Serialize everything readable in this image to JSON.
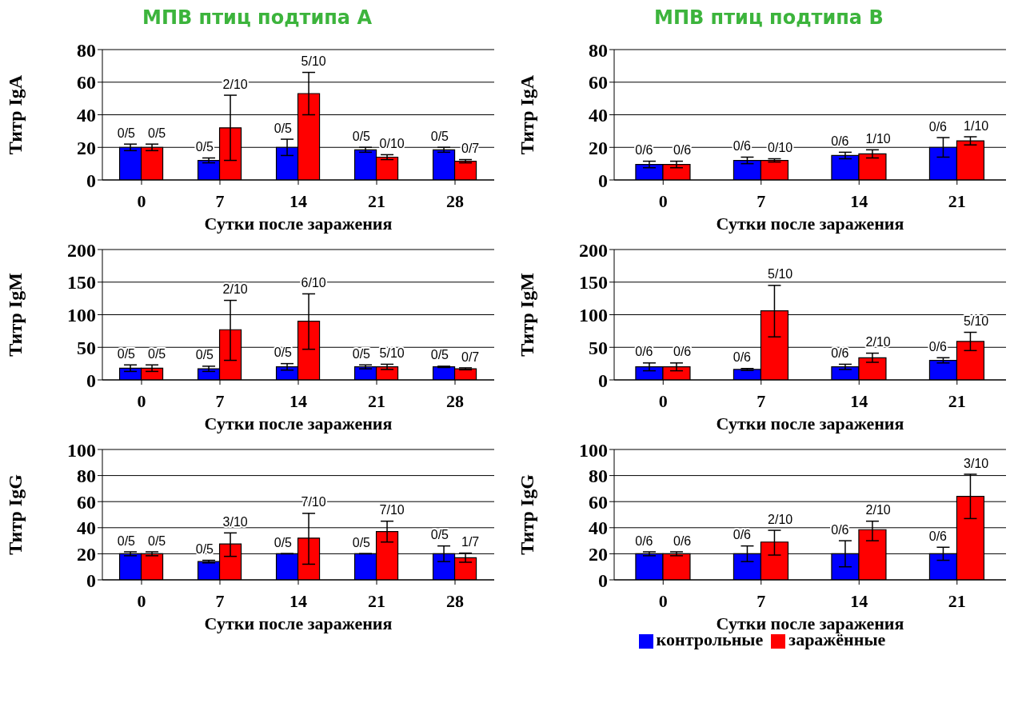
{
  "chart_data": [
    {
      "type": "bar",
      "title": "МПВ птиц подтипа А",
      "xlabel": "Сутки после заражения",
      "ylabel": "Титр IgA",
      "categories": [
        "0",
        "7",
        "14",
        "21",
        "28"
      ],
      "ylim": [
        0,
        80
      ],
      "yticks": [
        0,
        20,
        40,
        60,
        80
      ],
      "grid": "y",
      "series": [
        {
          "color": "#0000ff",
          "values": [
            20,
            12,
            20,
            18.5,
            18.5
          ],
          "errors": [
            2,
            1.5,
            5,
            1.5,
            1.5
          ]
        },
        {
          "color": "#ff0000",
          "values": [
            20,
            32,
            53,
            14,
            11.5
          ],
          "errors": [
            2,
            [
              12,
              52
            ],
            [
              40,
              66
            ],
            1.5,
            1
          ]
        }
      ],
      "annotations": [
        {
          "text": "0/5",
          "x": "0",
          "y": 20
        },
        {
          "text": "0/5",
          "x": "0",
          "y": 20
        },
        {
          "text": "0/5",
          "x": "7",
          "y": 12
        },
        {
          "text": "2/10",
          "x": "7",
          "y": 32
        },
        {
          "text": "0/5",
          "x": "14",
          "y": 20
        },
        {
          "text": "5/10",
          "x": "14",
          "y": 53
        },
        {
          "text": "0/5",
          "x": "21",
          "y": 18.5
        },
        {
          "text": "0/10",
          "x": "21",
          "y": 14
        },
        {
          "text": "0/5",
          "x": "28",
          "y": 18.5
        },
        {
          "text": "0/7",
          "x": "28",
          "y": 11.5
        }
      ]
    },
    {
      "type": "bar",
      "title": "МПВ птиц подтипа В",
      "xlabel": "Сутки после заражения",
      "ylabel": "Титр IgA",
      "categories": [
        "0",
        "7",
        "14",
        "21"
      ],
      "ylim": [
        0,
        80
      ],
      "yticks": [
        0,
        20,
        40,
        60,
        80
      ],
      "grid": "y",
      "series": [
        {
          "color": "#0000ff",
          "values": [
            9.5,
            12,
            15,
            20
          ],
          "errors": [
            2,
            2,
            2,
            [
              14,
              26
            ]
          ]
        },
        {
          "color": "#ff0000",
          "values": [
            9.5,
            12,
            16,
            24
          ],
          "errors": [
            2,
            1,
            2.5,
            2.5
          ]
        }
      ],
      "annotations": [
        {
          "text": "0/6",
          "x": "0",
          "y": 9.5
        },
        {
          "text": "0/6",
          "x": "0",
          "y": 9.5
        },
        {
          "text": "0/6",
          "x": "7",
          "y": 12
        },
        {
          "text": "0/10",
          "x": "7",
          "y": 12
        },
        {
          "text": "0/6",
          "x": "14",
          "y": 15
        },
        {
          "text": "1/10",
          "x": "14",
          "y": 16
        },
        {
          "text": "0/6",
          "x": "21",
          "y": 20
        },
        {
          "text": "1/10",
          "x": "21",
          "y": 24
        }
      ]
    },
    {
      "type": "bar",
      "xlabel": "Сутки после заражения",
      "ylabel": "Титр IgM",
      "categories": [
        "0",
        "7",
        "14",
        "21",
        "28"
      ],
      "ylim": [
        0,
        200
      ],
      "yticks": [
        0,
        50,
        100,
        150,
        200
      ],
      "grid": "y",
      "series": [
        {
          "color": "#0000ff",
          "values": [
            18,
            17,
            20,
            20,
            20
          ],
          "errors": [
            5,
            4,
            5,
            3,
            1
          ]
        },
        {
          "color": "#ff0000",
          "values": [
            18,
            77,
            90,
            20,
            17
          ],
          "errors": [
            5,
            [
              30,
              122
            ],
            [
              47,
              132
            ],
            4,
            1.5
          ]
        }
      ],
      "annotations": [
        {
          "text": "0/5",
          "x": "0",
          "y": 18
        },
        {
          "text": "0/5",
          "x": "0",
          "y": 18
        },
        {
          "text": "0/5",
          "x": "7",
          "y": 17
        },
        {
          "text": "2/10",
          "x": "7",
          "y": 77
        },
        {
          "text": "0/5",
          "x": "14",
          "y": 20
        },
        {
          "text": "6/10",
          "x": "14",
          "y": 90
        },
        {
          "text": "0/5",
          "x": "21",
          "y": 20
        },
        {
          "text": "5/10",
          "x": "21",
          "y": 20
        },
        {
          "text": "0/5",
          "x": "28",
          "y": 20
        },
        {
          "text": "0/7",
          "x": "28",
          "y": 17
        }
      ]
    },
    {
      "type": "bar",
      "xlabel": "Сутки после заражения",
      "ylabel": "Титр IgM",
      "categories": [
        "0",
        "7",
        "14",
        "21"
      ],
      "ylim": [
        0,
        200
      ],
      "yticks": [
        0,
        50,
        100,
        150,
        200
      ],
      "grid": "y",
      "series": [
        {
          "color": "#0000ff",
          "values": [
            20,
            16,
            20,
            30
          ],
          "errors": [
            6,
            1.5,
            4,
            4
          ]
        },
        {
          "color": "#ff0000",
          "values": [
            20,
            106,
            34,
            59
          ],
          "errors": [
            6,
            [
              66,
              145
            ],
            7,
            [
              45,
              73
            ]
          ]
        }
      ],
      "annotations": [
        {
          "text": "0/6",
          "x": "0",
          "y": 20
        },
        {
          "text": "0/6",
          "x": "0",
          "y": 20
        },
        {
          "text": "0/6",
          "x": "7",
          "y": 16
        },
        {
          "text": "5/10",
          "x": "7",
          "y": 106
        },
        {
          "text": "0/6",
          "x": "14",
          "y": 20
        },
        {
          "text": "2/10",
          "x": "14",
          "y": 34
        },
        {
          "text": "0/6",
          "x": "21",
          "y": 30
        },
        {
          "text": "5/10",
          "x": "21",
          "y": 59
        }
      ]
    },
    {
      "type": "bar",
      "xlabel": "Сутки после заражения",
      "ylabel": "Титр IgG",
      "categories": [
        "0",
        "7",
        "14",
        "21",
        "28"
      ],
      "ylim": [
        0,
        100
      ],
      "yticks": [
        0,
        20,
        40,
        60,
        80,
        100
      ],
      "grid": "y",
      "series": [
        {
          "color": "#0000ff",
          "values": [
            20,
            14,
            20,
            20,
            20
          ],
          "errors": [
            1.5,
            1,
            null,
            null,
            6
          ]
        },
        {
          "color": "#ff0000",
          "values": [
            20,
            27.5,
            32,
            37,
            17
          ],
          "errors": [
            1.5,
            [
              18,
              36
            ],
            [
              12,
              51
            ],
            [
              29,
              45
            ],
            3.5
          ]
        }
      ],
      "annotations": [
        {
          "text": "0/5",
          "x": "0",
          "y": 20
        },
        {
          "text": "0/5",
          "x": "0",
          "y": 20
        },
        {
          "text": "0/5",
          "x": "7",
          "y": 14
        },
        {
          "text": "3/10",
          "x": "7",
          "y": 27.5
        },
        {
          "text": "0/5",
          "x": "14",
          "y": 20
        },
        {
          "text": "7/10",
          "x": "14",
          "y": 32
        },
        {
          "text": "0/5",
          "x": "21",
          "y": 20
        },
        {
          "text": "7/10",
          "x": "21",
          "y": 37
        },
        {
          "text": "0/5",
          "x": "28",
          "y": 20
        },
        {
          "text": "1/7",
          "x": "28",
          "y": 17
        }
      ]
    },
    {
      "type": "bar",
      "xlabel": "Сутки после заражения",
      "ylabel": "Титр IgG",
      "categories": [
        "0",
        "7",
        "14",
        "21"
      ],
      "ylim": [
        0,
        100
      ],
      "yticks": [
        0,
        20,
        40,
        60,
        80,
        100
      ],
      "grid": "y",
      "legend": "bottom",
      "series": [
        {
          "name": "контрольные",
          "color": "#0000ff",
          "values": [
            20,
            20,
            20,
            20
          ],
          "errors": [
            1.5,
            6,
            10,
            5
          ]
        },
        {
          "name": "заражённые",
          "color": "#ff0000",
          "values": [
            20,
            29,
            38.5,
            64
          ],
          "errors": [
            1.5,
            [
              19,
              38
            ],
            [
              30,
              45
            ],
            [
              47,
              81
            ]
          ]
        }
      ],
      "annotations": [
        {
          "text": "0/6",
          "x": "0",
          "y": 20
        },
        {
          "text": "0/6",
          "x": "0",
          "y": 20
        },
        {
          "text": "0/6",
          "x": "7",
          "y": 20
        },
        {
          "text": "2/10",
          "x": "7",
          "y": 29
        },
        {
          "text": "0/6",
          "x": "14",
          "y": 20
        },
        {
          "text": "2/10",
          "x": "14",
          "y": 38.5
        },
        {
          "text": "0/6",
          "x": "21",
          "y": 20
        },
        {
          "text": "3/10",
          "x": "21",
          "y": 64
        }
      ]
    }
  ]
}
